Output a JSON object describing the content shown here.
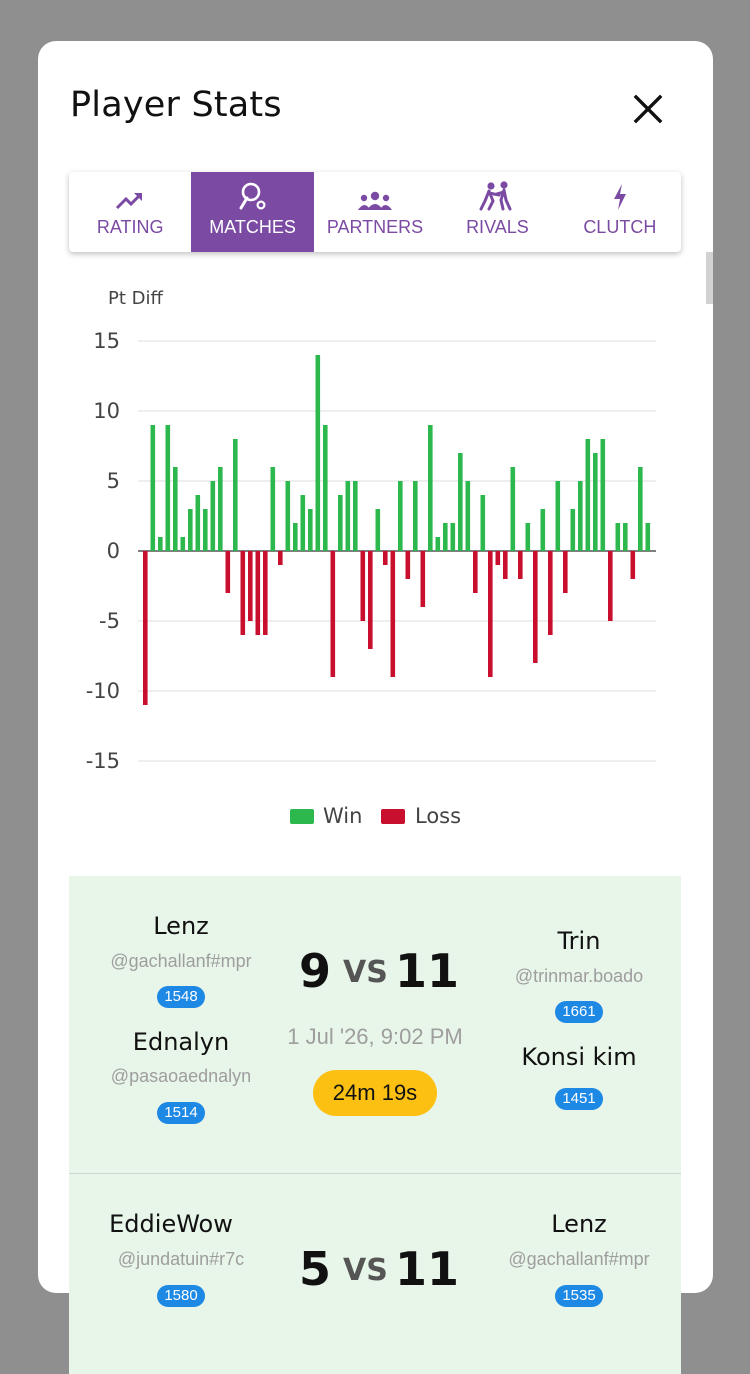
{
  "modal": {
    "title": "Player Stats",
    "close_icon": "close-icon"
  },
  "tabs": [
    {
      "label": "RATING",
      "icon": "trending-up-icon",
      "active": false
    },
    {
      "label": "MATCHES",
      "icon": "racket-icon",
      "active": true
    },
    {
      "label": "PARTNERS",
      "icon": "groups-icon",
      "active": false
    },
    {
      "label": "RIVALS",
      "icon": "sparring-icon",
      "active": false
    },
    {
      "label": "CLUTCH",
      "icon": "bolt-icon",
      "active": false
    }
  ],
  "colors": {
    "win": "#2db84d",
    "loss": "#c8102e",
    "accent": "#7b4ba3",
    "rating_badge": "#1e88e5",
    "duration_badge": "#fcc012"
  },
  "chart_data": {
    "type": "bar",
    "ylabel": "Pt Diff",
    "ylim": [
      -15,
      15
    ],
    "yticks": [
      15,
      10,
      5,
      0,
      -5,
      -10,
      -15
    ],
    "grid": true,
    "legend": {
      "placement": "bottom",
      "entries": [
        "Win",
        "Loss"
      ]
    },
    "series": [
      {
        "name": "Win",
        "color": "#2db84d"
      },
      {
        "name": "Loss",
        "color": "#c8102e"
      }
    ],
    "values": [
      -11,
      9,
      1,
      9,
      6,
      1,
      3,
      4,
      3,
      5,
      6,
      -3,
      8,
      -6,
      -5,
      -6,
      -6,
      6,
      -1,
      5,
      2,
      4,
      3,
      14,
      9,
      -9,
      4,
      5,
      5,
      -5,
      -7,
      3,
      -1,
      -9,
      5,
      -2,
      5,
      -4,
      9,
      1,
      2,
      2,
      7,
      5,
      -3,
      4,
      -9,
      -1,
      -2,
      6,
      -2,
      2,
      -8,
      3,
      -6,
      5,
      -3,
      3,
      5,
      8,
      7,
      8,
      -5,
      2,
      2,
      -2,
      6,
      2
    ]
  },
  "matches": [
    {
      "team_left": [
        {
          "name": "Lenz",
          "handle": "@gachallanf#mpr",
          "rating": "1548"
        },
        {
          "name": "Ednalyn",
          "handle": "@pasaoaednalyn",
          "rating": "1514"
        }
      ],
      "team_right": [
        {
          "name": "Trin",
          "handle": "@trinmar.boado",
          "rating": "1661"
        },
        {
          "name": "Konsi kim",
          "handle": "",
          "rating": "1451"
        }
      ],
      "score_left": "9",
      "vs": "VS",
      "score_right": "11",
      "date": "1 Jul '26, 9:02 PM",
      "duration": "24m 19s"
    },
    {
      "team_left": [
        {
          "name": "EddieWow",
          "handle": "@jundatuin#r7c",
          "rating": "1580"
        }
      ],
      "team_right": [
        {
          "name": "Lenz",
          "handle": "@gachallanf#mpr",
          "rating": "1535"
        }
      ],
      "score_left": "5",
      "vs": "VS",
      "score_right": "11"
    }
  ]
}
